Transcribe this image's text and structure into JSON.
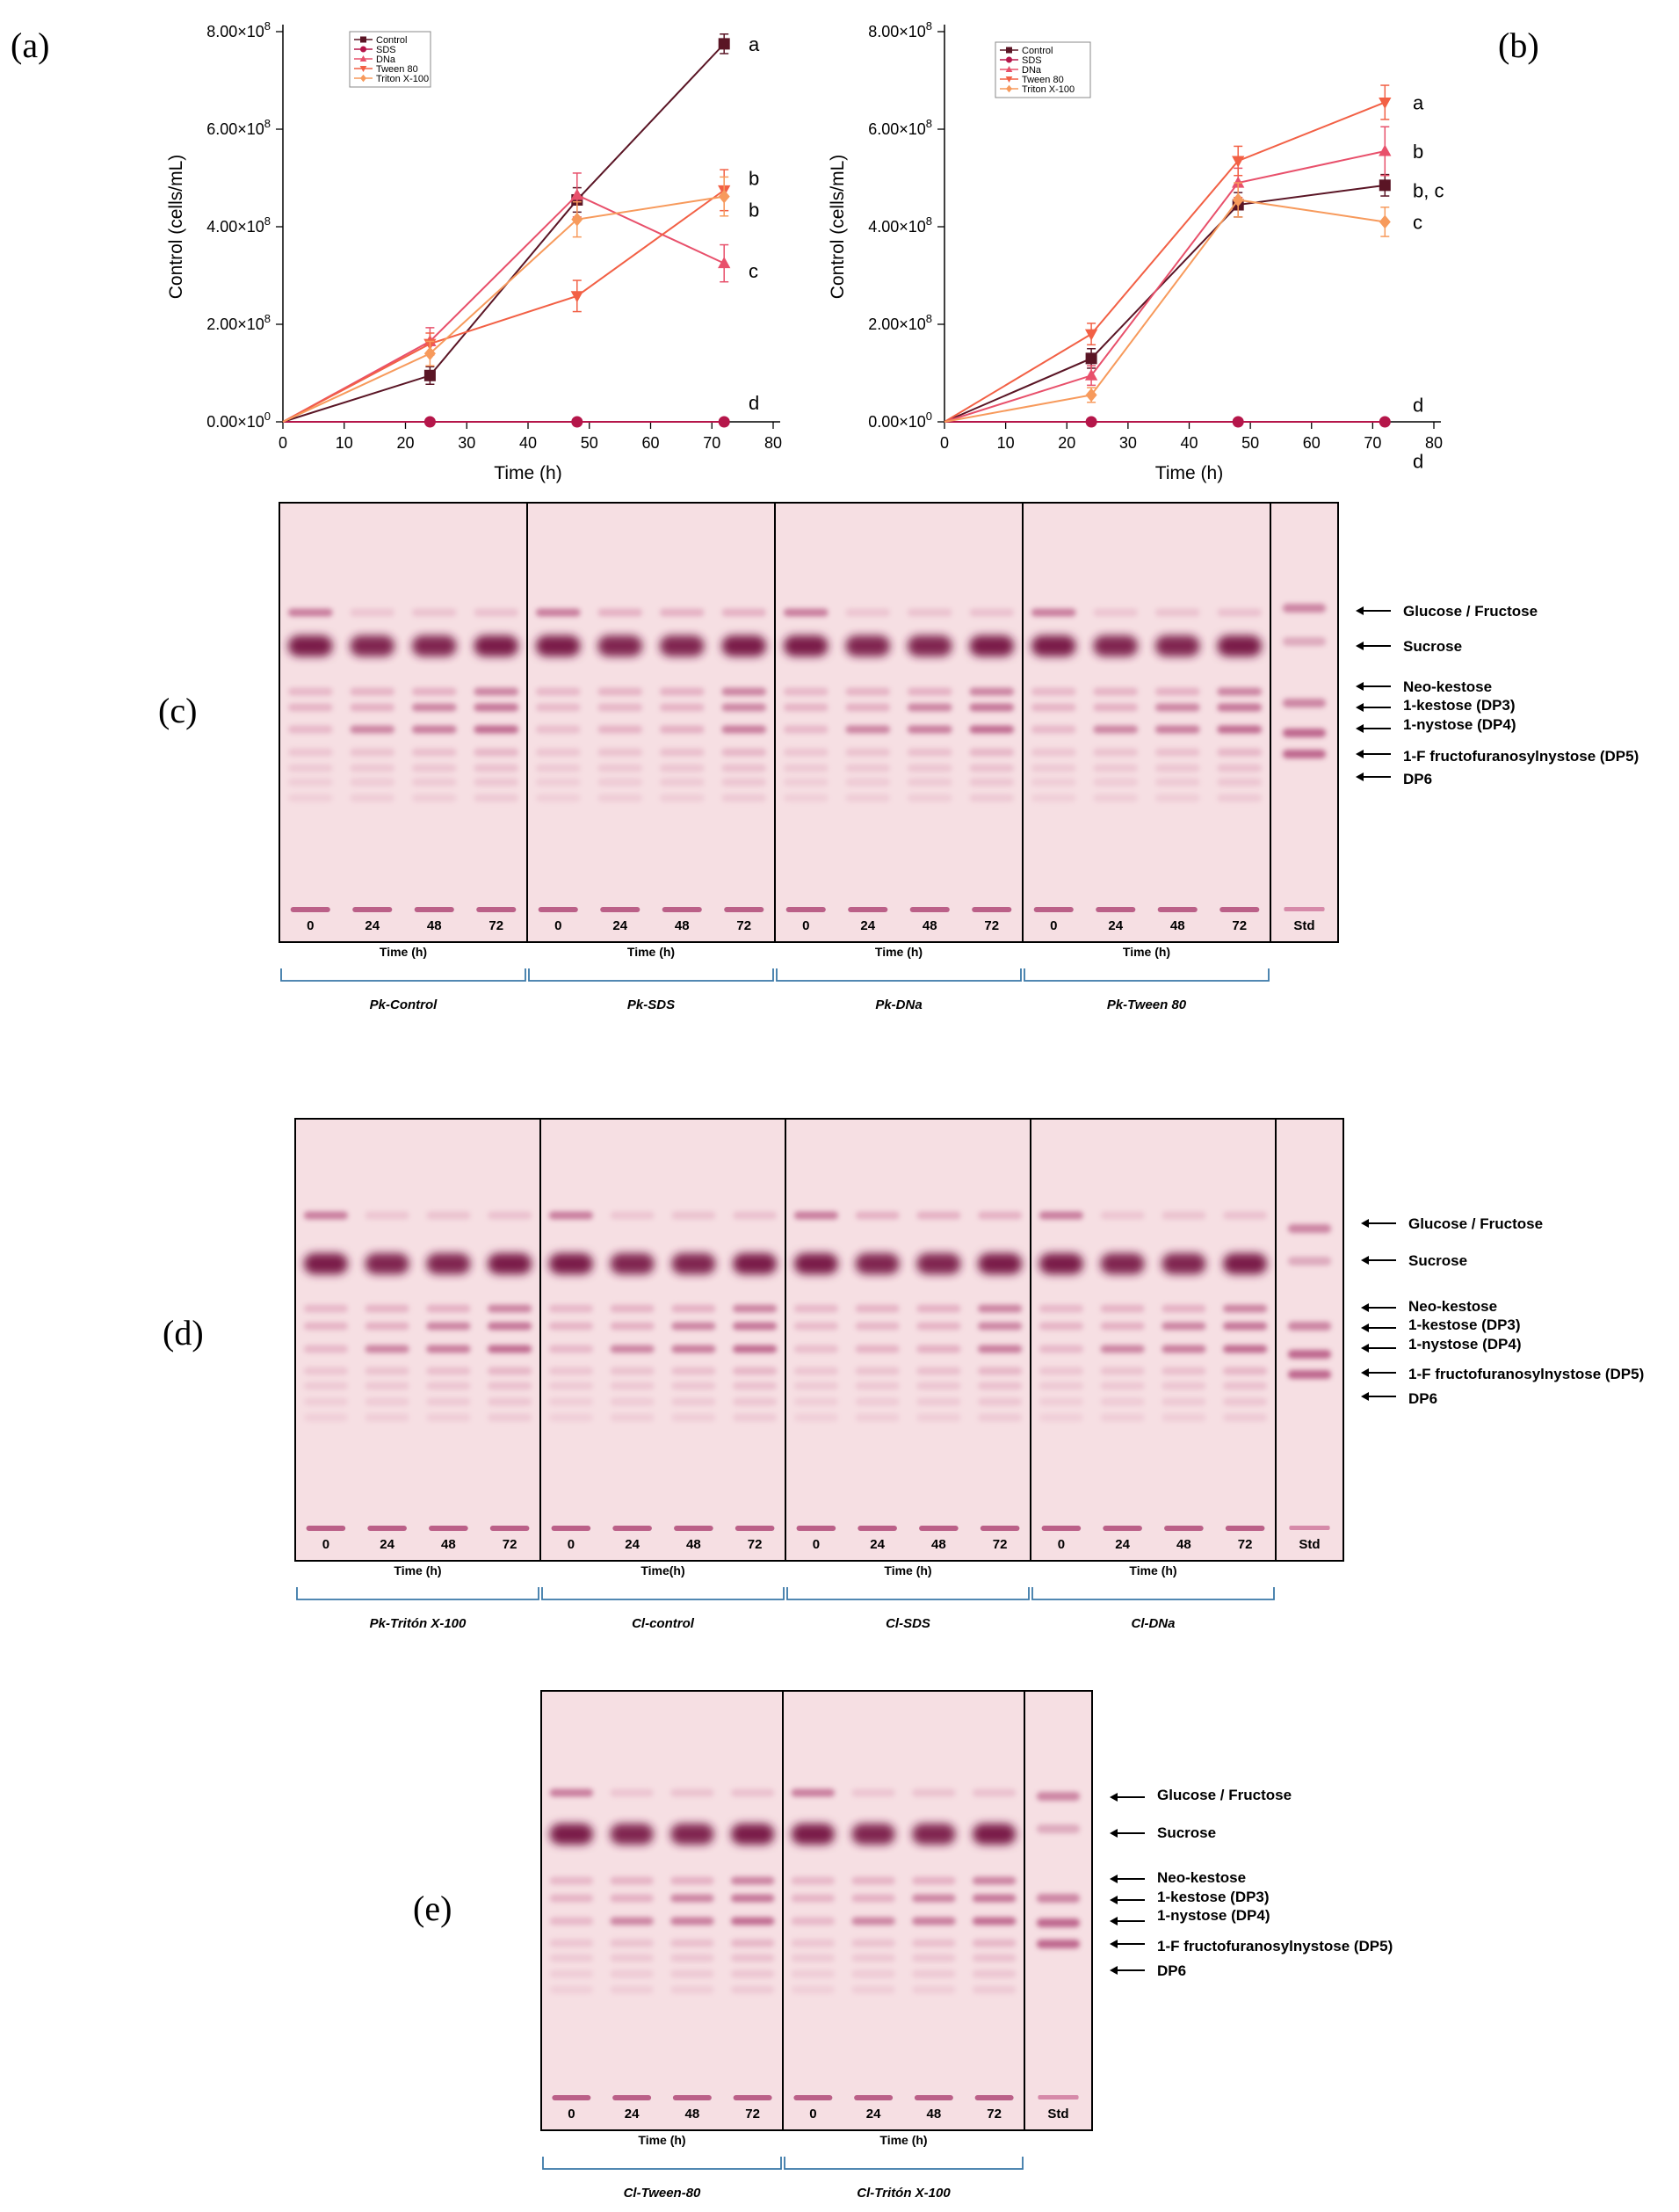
{
  "colors": {
    "Control": "#5a1525",
    "SDS": "#b5164a",
    "DNa": "#e8506b",
    "Tween 80": "#f26045",
    "Triton X-100": "#f79a5c",
    "plate_bg": "#f6dfe3",
    "band_dark": "#7a1e48",
    "band_mid": "#b04a78",
    "band_light": "#d68aa9",
    "bracket": "#3a78a8"
  },
  "chart_data": [
    {
      "id": "a",
      "type": "line",
      "panel_label": "(a)",
      "xlabel": "Time (h)",
      "ylabel": "Control (cells/mL)",
      "xlim": [
        0,
        80
      ],
      "ylim": [
        0,
        800000000
      ],
      "xticks": [
        "0",
        "10",
        "20",
        "30",
        "40",
        "50",
        "60",
        "70",
        "80"
      ],
      "yticks": [
        {
          "value": 0,
          "base": "0.00×10",
          "exp": "0"
        },
        {
          "value": 200000000,
          "base": "2.00×10",
          "exp": "8"
        },
        {
          "value": 400000000,
          "base": "4.00×10",
          "exp": "8"
        },
        {
          "value": 600000000,
          "base": "6.00×10",
          "exp": "8"
        },
        {
          "value": 800000000,
          "base": "8.00×10",
          "exp": "8"
        }
      ],
      "legend": [
        "Control",
        "SDS",
        "DNa",
        "Tween 80",
        "Triton X-100"
      ],
      "series": [
        {
          "name": "Control",
          "marker": "square",
          "x": [
            0,
            24,
            48,
            72
          ],
          "y": [
            0,
            95000000,
            455000000,
            775000000
          ],
          "err": [
            0,
            18000000,
            25000000,
            20000000
          ]
        },
        {
          "name": "SDS",
          "marker": "circle",
          "x": [
            0,
            24,
            48,
            72
          ],
          "y": [
            0,
            0,
            0,
            0
          ],
          "err": [
            0,
            0,
            0,
            0
          ]
        },
        {
          "name": "DNa",
          "marker": "triangle-up",
          "x": [
            0,
            24,
            48,
            72
          ],
          "y": [
            0,
            165000000,
            465000000,
            325000000
          ],
          "err": [
            0,
            28000000,
            45000000,
            38000000
          ]
        },
        {
          "name": "Tween 80",
          "marker": "triangle-down",
          "x": [
            0,
            24,
            48,
            72
          ],
          "y": [
            0,
            160000000,
            258000000,
            475000000
          ],
          "err": [
            0,
            22000000,
            32000000,
            42000000
          ]
        },
        {
          "name": "Triton X-100",
          "marker": "diamond",
          "x": [
            0,
            24,
            48,
            72
          ],
          "y": [
            0,
            140000000,
            415000000,
            462000000
          ],
          "err": [
            0,
            25000000,
            36000000,
            40000000
          ]
        }
      ],
      "letters": [
        {
          "text": "a",
          "y": 775000000
        },
        {
          "text": "b",
          "y": 500000000
        },
        {
          "text": "b",
          "y": 435000000
        },
        {
          "text": "c",
          "y": 310000000
        },
        {
          "text": "d",
          "y": 40000000
        }
      ]
    },
    {
      "id": "b",
      "type": "line",
      "panel_label": "(b)",
      "xlabel": "Time (h)",
      "ylabel": "Control (cells/mL)",
      "xlim": [
        0,
        80
      ],
      "ylim": [
        0,
        800000000
      ],
      "xticks": [
        "0",
        "10",
        "20",
        "30",
        "40",
        "50",
        "60",
        "70",
        "80"
      ],
      "yticks": [
        {
          "value": 0,
          "base": "0.00×10",
          "exp": "0"
        },
        {
          "value": 200000000,
          "base": "2.00×10",
          "exp": "8"
        },
        {
          "value": 400000000,
          "base": "4.00×10",
          "exp": "8"
        },
        {
          "value": 600000000,
          "base": "6.00×10",
          "exp": "8"
        },
        {
          "value": 800000000,
          "base": "8.00×10",
          "exp": "8"
        }
      ],
      "legend": [
        "Control",
        "SDS",
        "DNa",
        "Tween 80",
        "Triton X-100"
      ],
      "series": [
        {
          "name": "Control",
          "marker": "square",
          "x": [
            0,
            24,
            48,
            72
          ],
          "y": [
            0,
            130000000,
            445000000,
            485000000
          ],
          "err": [
            0,
            20000000,
            25000000,
            22000000
          ]
        },
        {
          "name": "SDS",
          "marker": "circle",
          "x": [
            0,
            24,
            48,
            72
          ],
          "y": [
            0,
            0,
            0,
            0
          ],
          "err": [
            0,
            0,
            0,
            0
          ]
        },
        {
          "name": "DNa",
          "marker": "triangle-up",
          "x": [
            0,
            24,
            48,
            72
          ],
          "y": [
            0,
            95000000,
            490000000,
            555000000
          ],
          "err": [
            0,
            20000000,
            30000000,
            50000000
          ]
        },
        {
          "name": "Tween 80",
          "marker": "triangle-down",
          "x": [
            0,
            24,
            48,
            72
          ],
          "y": [
            0,
            180000000,
            535000000,
            655000000
          ],
          "err": [
            0,
            22000000,
            30000000,
            35000000
          ]
        },
        {
          "name": "Triton X-100",
          "marker": "diamond",
          "x": [
            0,
            24,
            48,
            72
          ],
          "y": [
            0,
            55000000,
            455000000,
            410000000
          ],
          "err": [
            0,
            15000000,
            35000000,
            30000000
          ]
        }
      ],
      "letters": [
        {
          "text": "a",
          "y": 655000000
        },
        {
          "text": "b",
          "y": 555000000
        },
        {
          "text": "b, c",
          "y": 475000000
        },
        {
          "text": "c",
          "y": 410000000
        },
        {
          "text": "d",
          "y": 35000000
        },
        {
          "text": "d",
          "y": -80000000
        }
      ]
    }
  ],
  "tlc": {
    "time_axis": "Time (h)",
    "time_axis_nospace": "Time(h)",
    "lanes": [
      "0",
      "24",
      "48",
      "72"
    ],
    "std": "Std",
    "bands": [
      "Glucose / Fructose",
      "Sucrose",
      "Neo-kestose",
      "1-kestose (DP3)",
      "1-nystose (DP4)",
      "1-F fructofuranosylnystose (DP5)",
      "DP6"
    ],
    "c": {
      "panel_label": "(c)",
      "groups": [
        "Pk-Control",
        "Pk-SDS",
        "Pk-DNa",
        "Pk-Tween 80"
      ]
    },
    "d": {
      "panel_label": "(d)",
      "groups": [
        "Pk-Tritón X-100",
        "Cl-control",
        "Cl-SDS",
        "Cl-DNa"
      ]
    },
    "e": {
      "panel_label": "(e)",
      "groups": [
        "Cl-Tween-80",
        "Cl-Tritón X-100"
      ]
    }
  }
}
